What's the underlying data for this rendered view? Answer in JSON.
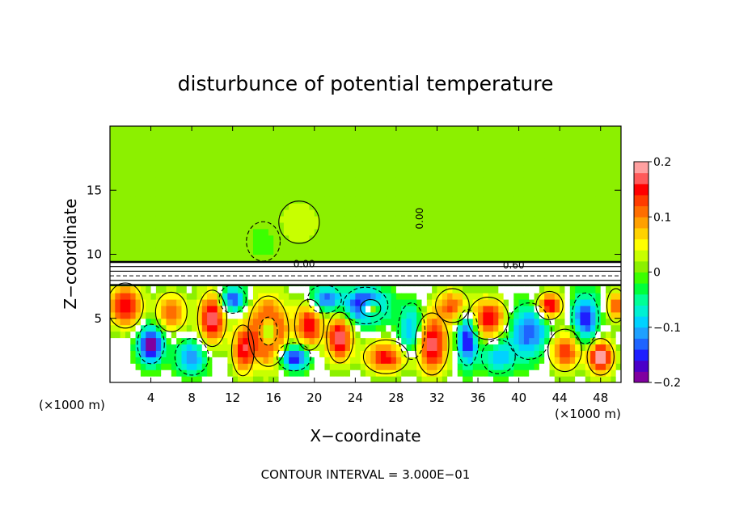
{
  "chart_data": {
    "type": "heatmap",
    "title": "disturbunce of potential temperature",
    "xlabel": "X−coordinate",
    "ylabel": "Z−coordinate",
    "x_unit_left": "(×1000 m)",
    "x_unit_right": "(×1000 m)",
    "footer": "CONTOUR INTERVAL = 3.000E−01",
    "xlim": [
      0,
      50
    ],
    "ylim": [
      0,
      20
    ],
    "x_ticks": [
      4,
      8,
      12,
      16,
      20,
      24,
      28,
      32,
      36,
      40,
      44,
      48
    ],
    "x_tick_labels": [
      "4",
      "8",
      "12",
      "16",
      "20",
      "24",
      "28",
      "32",
      "36",
      "40",
      "44",
      "48"
    ],
    "y_ticks": [
      5,
      10,
      15
    ],
    "y_tick_labels": [
      "5",
      "10",
      "15"
    ],
    "colorbar": {
      "range": [
        -0.2,
        0.2
      ],
      "ticks": [
        0.2,
        0.1,
        0,
        -0.1,
        -0.2
      ],
      "tick_labels": [
        "0.2",
        "0.1",
        "0",
        "−0.1",
        "−0.2"
      ],
      "colors": [
        "#8000a0",
        "#4b00c8",
        "#1e1eff",
        "#1e64ff",
        "#1ea0ff",
        "#00d2ff",
        "#00f0d2",
        "#00ff96",
        "#00ff3c",
        "#3cff00",
        "#8cf000",
        "#c8ff00",
        "#ffff00",
        "#ffd200",
        "#ffa000",
        "#ff6e00",
        "#ff3c00",
        "#ff0000",
        "#ff5a5a",
        "#ffa0a0"
      ]
    },
    "contour_labels": [
      "0.00",
      "0.60",
      "0.00"
    ],
    "background_value": 0.01,
    "layer_top_z": 7.6,
    "band_z": [
      7.6,
      9.4
    ],
    "blobs": [
      {
        "x": 1.5,
        "z": 6.0,
        "rx": 1.6,
        "rz": 1.6,
        "v": 0.16
      },
      {
        "x": 4.0,
        "z": 3.0,
        "rx": 1.2,
        "rz": 1.4,
        "v": -0.2
      },
      {
        "x": 6.0,
        "z": 5.5,
        "rx": 1.4,
        "rz": 1.4,
        "v": 0.12
      },
      {
        "x": 8.0,
        "z": 2.0,
        "rx": 1.5,
        "rz": 1.3,
        "v": -0.12
      },
      {
        "x": 10.0,
        "z": 5.0,
        "rx": 1.3,
        "rz": 2.0,
        "v": 0.18
      },
      {
        "x": 12.0,
        "z": 6.5,
        "rx": 1.2,
        "rz": 1.0,
        "v": -0.15
      },
      {
        "x": 13.0,
        "z": 2.5,
        "rx": 1.0,
        "rz": 1.8,
        "v": 0.14
      },
      {
        "x": 15.5,
        "z": 4.0,
        "rx": 1.8,
        "rz": 2.5,
        "v": 0.2
      },
      {
        "x": 15.5,
        "z": 4.0,
        "rx": 0.8,
        "rz": 1.0,
        "v": -0.2
      },
      {
        "x": 18.0,
        "z": 2.0,
        "rx": 1.5,
        "rz": 1.0,
        "v": -0.18
      },
      {
        "x": 19.5,
        "z": 4.5,
        "rx": 1.3,
        "rz": 1.8,
        "v": 0.16
      },
      {
        "x": 21.0,
        "z": 6.5,
        "rx": 1.5,
        "rz": 1.0,
        "v": -0.14
      },
      {
        "x": 22.5,
        "z": 3.5,
        "rx": 1.2,
        "rz": 1.8,
        "v": 0.18
      },
      {
        "x": 25.0,
        "z": 6.0,
        "rx": 2.0,
        "rz": 1.3,
        "v": -0.2
      },
      {
        "x": 25.5,
        "z": 5.8,
        "rx": 0.9,
        "rz": 0.6,
        "v": 0.2
      },
      {
        "x": 27.0,
        "z": 2.0,
        "rx": 2.0,
        "rz": 1.2,
        "v": 0.15
      },
      {
        "x": 29.5,
        "z": 4.0,
        "rx": 1.2,
        "rz": 2.0,
        "v": -0.12
      },
      {
        "x": 31.5,
        "z": 3.0,
        "rx": 1.5,
        "rz": 2.2,
        "v": 0.18
      },
      {
        "x": 33.5,
        "z": 6.0,
        "rx": 1.5,
        "rz": 1.2,
        "v": 0.12
      },
      {
        "x": 35.0,
        "z": 3.5,
        "rx": 1.0,
        "rz": 2.0,
        "v": -0.18
      },
      {
        "x": 37.0,
        "z": 5.0,
        "rx": 1.8,
        "rz": 1.5,
        "v": 0.16
      },
      {
        "x": 38.0,
        "z": 2.0,
        "rx": 1.5,
        "rz": 1.2,
        "v": -0.1
      },
      {
        "x": 41.0,
        "z": 4.0,
        "rx": 2.0,
        "rz": 2.0,
        "v": -0.14
      },
      {
        "x": 43.0,
        "z": 6.0,
        "rx": 1.2,
        "rz": 1.0,
        "v": 0.18
      },
      {
        "x": 44.5,
        "z": 2.5,
        "rx": 1.5,
        "rz": 1.5,
        "v": 0.14
      },
      {
        "x": 46.5,
        "z": 5.0,
        "rx": 1.2,
        "rz": 1.8,
        "v": -0.16
      },
      {
        "x": 48.0,
        "z": 2.0,
        "rx": 1.2,
        "rz": 1.3,
        "v": 0.2
      },
      {
        "x": 49.5,
        "z": 6.0,
        "rx": 0.8,
        "rz": 1.2,
        "v": 0.12
      },
      {
        "x": 15.0,
        "z": 11.0,
        "rx": 1.5,
        "rz": 1.4,
        "v": -0.02
      },
      {
        "x": 18.5,
        "z": 12.5,
        "rx": 1.8,
        "rz": 1.5,
        "v": 0.03
      }
    ]
  }
}
